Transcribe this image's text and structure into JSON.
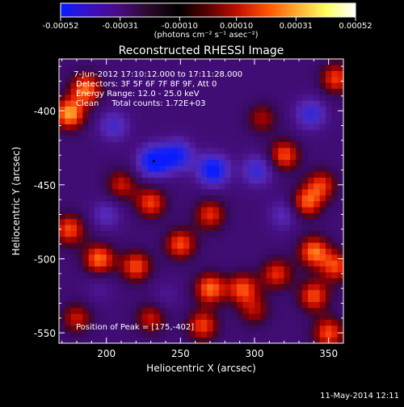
{
  "colorbar": {
    "ticks": [
      "-0.00052",
      "-0.00031",
      "-0.00010",
      "0.00010",
      "0.00031",
      "0.00052"
    ],
    "tick_values": [
      -0.00052,
      -0.00031,
      -0.0001,
      0.0001,
      0.00031,
      0.00052
    ],
    "unit_label": "(photons cm⁻² s⁻¹ asec⁻²)",
    "colors": [
      "#0a1cff",
      "#3b10c0",
      "#4a0a80",
      "#2a0a2a",
      "#000000",
      "#5a0000",
      "#c01000",
      "#ff5000",
      "#ffaa30",
      "#ffff60",
      "#ffffff"
    ]
  },
  "title": "Reconstructed RHESSI Image",
  "info": {
    "line1": "7-Jun-2012 17:10:12.000 to 17:11:28.000",
    "line2": "Detectors: 3F 5F 6F 7F 8F 9F, Att 0",
    "line3": "Energy Range: 12.0 - 25.0 keV",
    "line4": "Clean     Total counts: 1.72E+03"
  },
  "peak_label": "Position of Peak = [175,-402]",
  "footer_date": "11-May-2014 12:11",
  "chart_data": {
    "type": "heatmap",
    "title": "Reconstructed RHESSI Image",
    "xlabel": "Heliocentric X (arcsec)",
    "ylabel": "Heliocentric Y (arcsec)",
    "xlim": [
      168,
      360
    ],
    "ylim": [
      -557,
      -365
    ],
    "x_ticks": [
      200,
      250,
      300,
      350
    ],
    "y_ticks": [
      -400,
      -450,
      -500,
      -550
    ],
    "x_tick_labels": [
      "200",
      "250",
      "300",
      "350"
    ],
    "y_tick_labels": [
      "-400",
      "-450",
      "-500",
      "-550"
    ],
    "peak": [
      175,
      -402
    ],
    "value_range": [
      -0.00052,
      0.00052
    ],
    "features": [
      {
        "x": 175,
        "y": -402,
        "value": 0.00052
      },
      {
        "x": 186,
        "y": -385,
        "value": 0.00045
      },
      {
        "x": 232,
        "y": -434,
        "value": -0.0005
      },
      {
        "x": 248,
        "y": -430,
        "value": -0.0004
      },
      {
        "x": 272,
        "y": -440,
        "value": -0.00047
      },
      {
        "x": 302,
        "y": -440,
        "value": -0.0003
      },
      {
        "x": 320,
        "y": -430,
        "value": 0.0004
      },
      {
        "x": 305,
        "y": -405,
        "value": 0.00025
      },
      {
        "x": 338,
        "y": -402,
        "value": -0.0003
      },
      {
        "x": 355,
        "y": -378,
        "value": 0.00038
      },
      {
        "x": 210,
        "y": -450,
        "value": 0.0003
      },
      {
        "x": 230,
        "y": -462,
        "value": 0.00038
      },
      {
        "x": 270,
        "y": -470,
        "value": 0.00035
      },
      {
        "x": 335,
        "y": -462,
        "value": 0.0004
      },
      {
        "x": 345,
        "y": -450,
        "value": 0.00035
      },
      {
        "x": 175,
        "y": -480,
        "value": 0.0004
      },
      {
        "x": 195,
        "y": -500,
        "value": 0.00045
      },
      {
        "x": 220,
        "y": -505,
        "value": 0.0004
      },
      {
        "x": 250,
        "y": -490,
        "value": 0.0004
      },
      {
        "x": 270,
        "y": -520,
        "value": 0.00045
      },
      {
        "x": 292,
        "y": -520,
        "value": 0.0004
      },
      {
        "x": 315,
        "y": -510,
        "value": 0.00035
      },
      {
        "x": 340,
        "y": -495,
        "value": 0.00045
      },
      {
        "x": 355,
        "y": -505,
        "value": 0.00038
      },
      {
        "x": 340,
        "y": -525,
        "value": 0.0004
      },
      {
        "x": 180,
        "y": -540,
        "value": 0.0003
      },
      {
        "x": 230,
        "y": -540,
        "value": 0.0003
      },
      {
        "x": 265,
        "y": -545,
        "value": 0.00038
      },
      {
        "x": 300,
        "y": -535,
        "value": 0.00025
      },
      {
        "x": 350,
        "y": -550,
        "value": 0.0004
      },
      {
        "x": 195,
        "y": -520,
        "value": -0.0001
      },
      {
        "x": 240,
        "y": -525,
        "value": -0.0001
      },
      {
        "x": 320,
        "y": -470,
        "value": -0.0002
      },
      {
        "x": 205,
        "y": -410,
        "value": -0.00025
      },
      {
        "x": 200,
        "y": -470,
        "value": -0.0002
      }
    ]
  }
}
